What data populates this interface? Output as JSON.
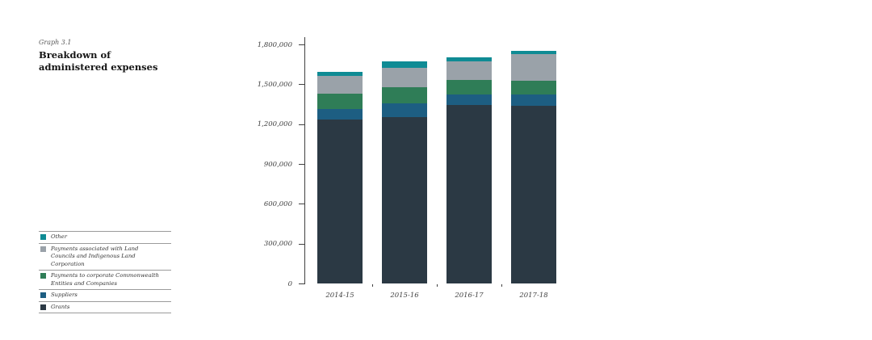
{
  "title": {
    "graph_number": "Graph 3.1",
    "heading": "Breakdown of administered expenses"
  },
  "colors": {
    "grants": "#2b3944",
    "suppliers": "#1d5e82",
    "corporate_entities": "#2f7d57",
    "land_councils": "#9aa2a9",
    "other": "#0f8b94",
    "axis": "#404040",
    "legend_rule": "#9b9b9b"
  },
  "legend": {
    "position": "bottom-left",
    "items": [
      {
        "label": "Other",
        "color": "#0f8b94"
      },
      {
        "label": "Payments associated with Land Councils and Indigenous Land Corporation",
        "color": "#9aa2a9"
      },
      {
        "label": "Payments to corporate Commonwealth Entities and Companies",
        "color": "#2f7d57"
      },
      {
        "label": "Suppliers",
        "color": "#1d5e82"
      },
      {
        "label": "Grants",
        "color": "#2b3944"
      }
    ]
  },
  "chart_data": {
    "type": "bar",
    "stacked": true,
    "title": "Breakdown of administered expenses",
    "xlabel": "",
    "ylabel": "",
    "categories": [
      "2014-15",
      "2015-16",
      "2016-17",
      "2017-18"
    ],
    "series": [
      {
        "name": "Grants",
        "color": "#2b3944",
        "values": [
          1235000,
          1255000,
          1345000,
          1340000
        ]
      },
      {
        "name": "Suppliers",
        "color": "#1d5e82",
        "values": [
          80000,
          100000,
          80000,
          80000
        ]
      },
      {
        "name": "Payments to corporate Commonwealth Entities and Companies",
        "color": "#2f7d57",
        "values": [
          115000,
          120000,
          105000,
          105000
        ]
      },
      {
        "name": "Payments associated with Land Councils and Indigenous Land Corporation",
        "color": "#9aa2a9",
        "values": [
          130000,
          150000,
          140000,
          200000
        ]
      },
      {
        "name": "Other",
        "color": "#0f8b94",
        "values": [
          35000,
          45000,
          30000,
          25000
        ]
      }
    ],
    "ylim": [
      0,
      1800000
    ],
    "ytick_step": 300000,
    "ytick_labels": [
      "0",
      "300,000",
      "600,000",
      "900,000",
      "1,200,000",
      "1,500,000",
      "1,800,000"
    ],
    "grid": false,
    "legend_position": "bottom-left"
  }
}
